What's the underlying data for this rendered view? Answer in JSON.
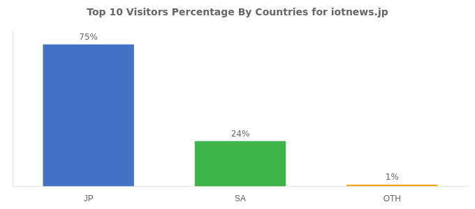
{
  "chart_data": {
    "type": "bar",
    "title": "Top 10 Visitors Percentage By Countries for iotnews.jp",
    "categories": [
      "JP",
      "SA",
      "OTH"
    ],
    "values": [
      75,
      24,
      1
    ],
    "value_labels": [
      "75%",
      "24%",
      "1%"
    ],
    "colors": [
      "#4472c4",
      "#3db34a",
      "#f5a623"
    ],
    "ylim": [
      0,
      82
    ],
    "yticks": [],
    "tick_labels": "x",
    "grid": false,
    "data_labels": true
  }
}
